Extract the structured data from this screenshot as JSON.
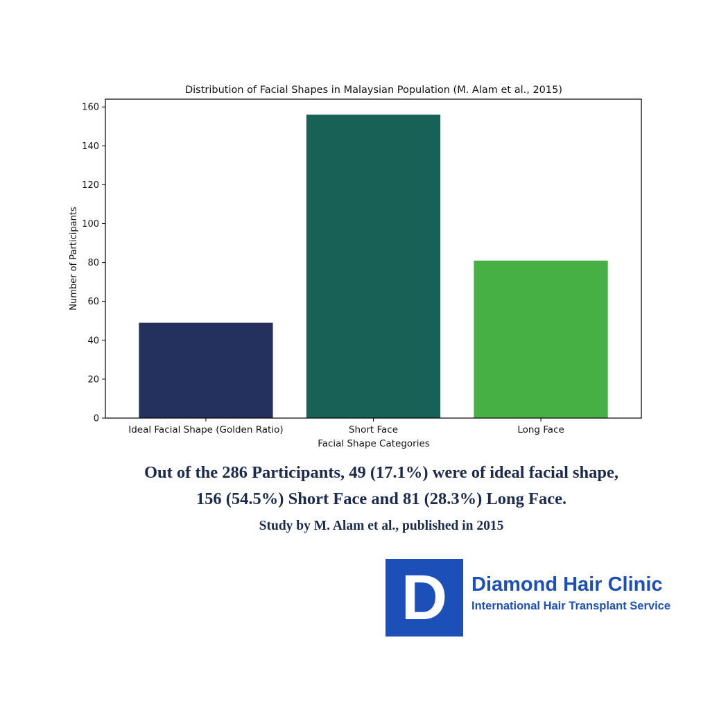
{
  "chart_data": {
    "type": "bar",
    "title": "Distribution of Facial Shapes in Malaysian Population (M. Alam et al., 2015)",
    "xlabel": "Facial Shape Categories",
    "ylabel": "Number of Participants",
    "categories": [
      "Ideal Facial Shape (Golden Ratio)",
      "Short Face",
      "Long Face"
    ],
    "values": [
      49,
      156,
      81
    ],
    "colors": [
      "#24305e",
      "#176157",
      "#47b045"
    ],
    "ylim": [
      0,
      164
    ],
    "yticks": [
      0,
      20,
      40,
      60,
      80,
      100,
      120,
      140,
      160
    ],
    "grid": false,
    "legend": "none"
  },
  "caption": {
    "line1": "Out of the 286 Participants, 49 (17.1%) were of ideal facial shape,",
    "line2": "156 (54.5%) Short Face and 81 (28.3%) Long Face.",
    "line3": "Study by M. Alam et al., published in 2015"
  },
  "logo": {
    "letter": "D",
    "name": "Diamond Hair Clinic",
    "tagline": "International Hair Transplant Service",
    "color": "#1d4fb8"
  }
}
